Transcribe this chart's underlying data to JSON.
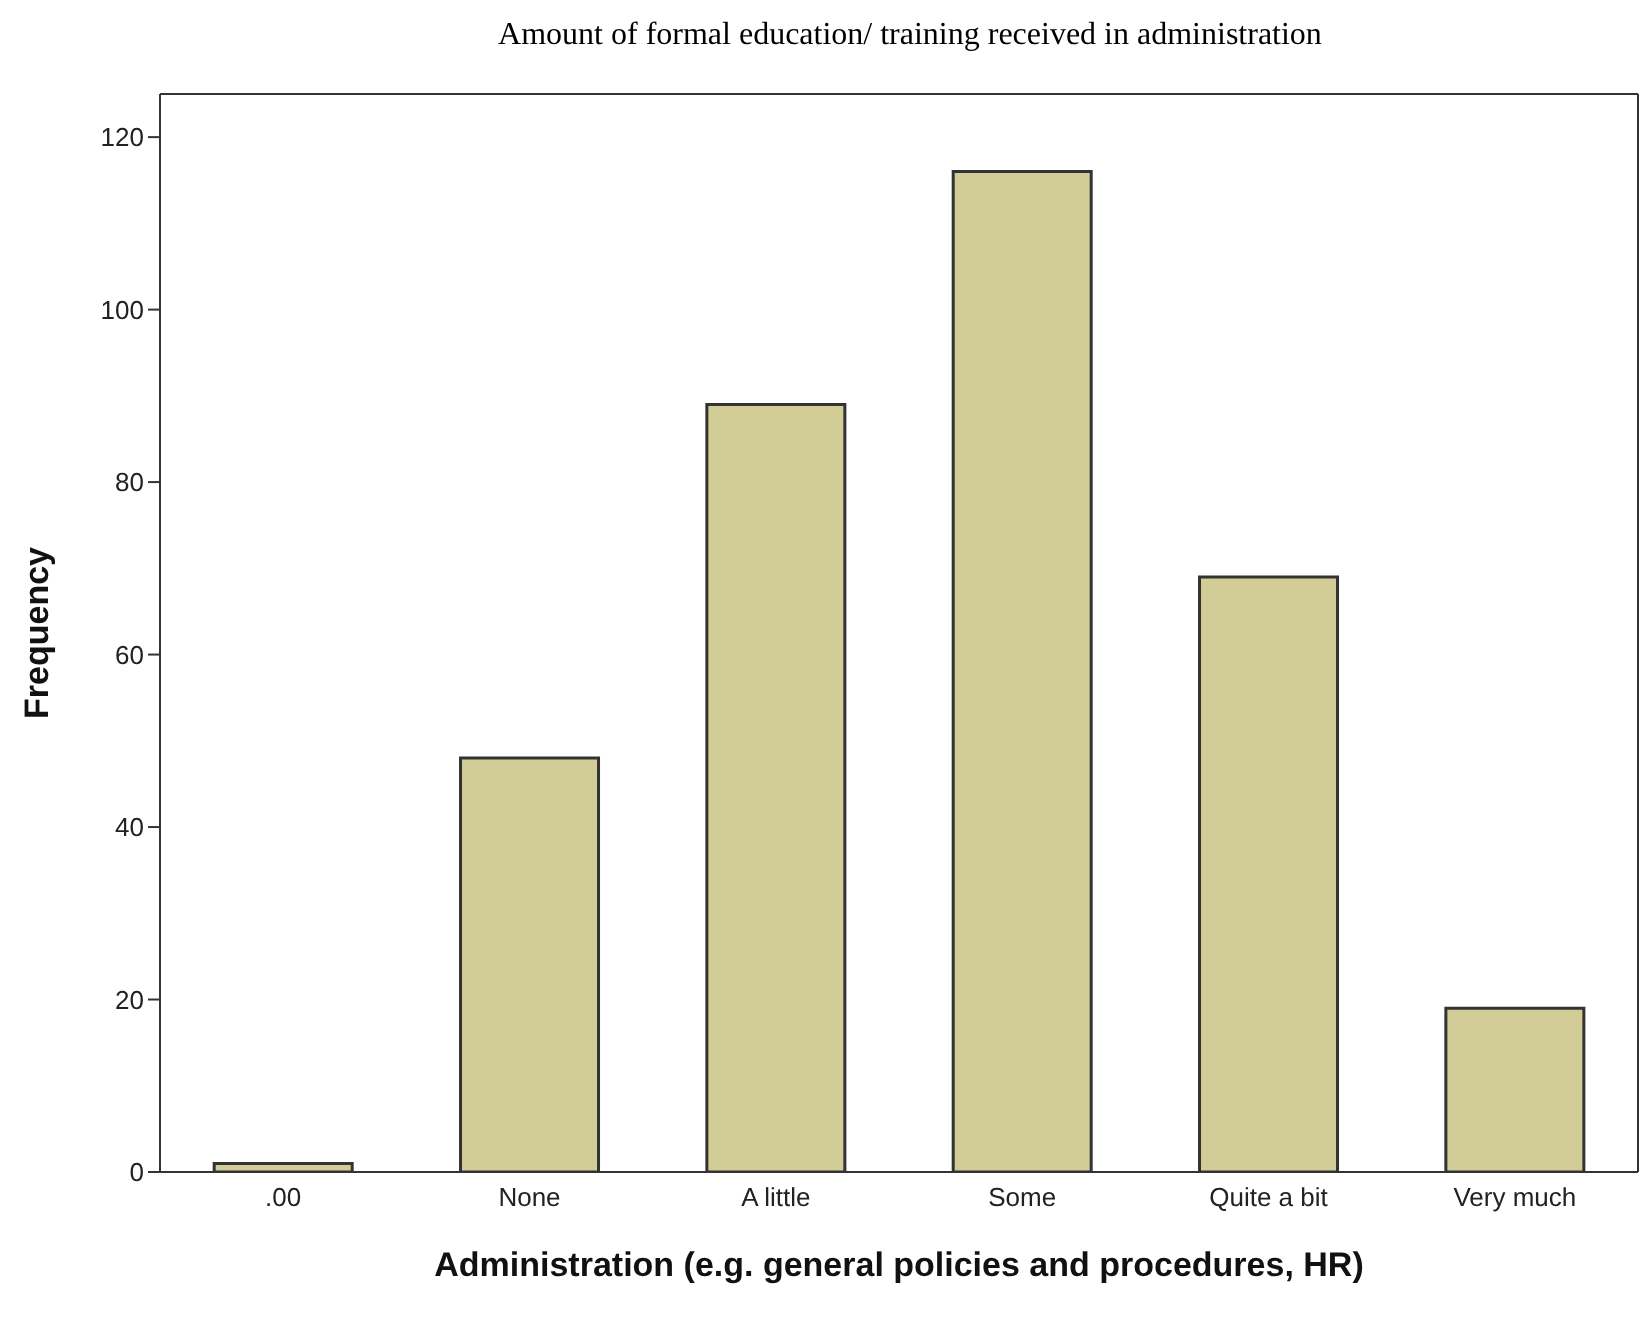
{
  "chart_data": {
    "type": "bar",
    "title": "Amount of formal education/ training received in administration",
    "xlabel": "Administration (e.g. general policies and procedures, HR)",
    "ylabel": "Frequency",
    "categories": [
      ".00",
      "None",
      "A little",
      "Some",
      "Quite a bit",
      "Very much"
    ],
    "values": [
      1,
      48,
      89,
      116,
      69,
      19
    ],
    "color": "#d2cc97",
    "ylim": [
      0,
      125
    ],
    "yticks": [
      0,
      20,
      40,
      60,
      80,
      100,
      120
    ]
  }
}
